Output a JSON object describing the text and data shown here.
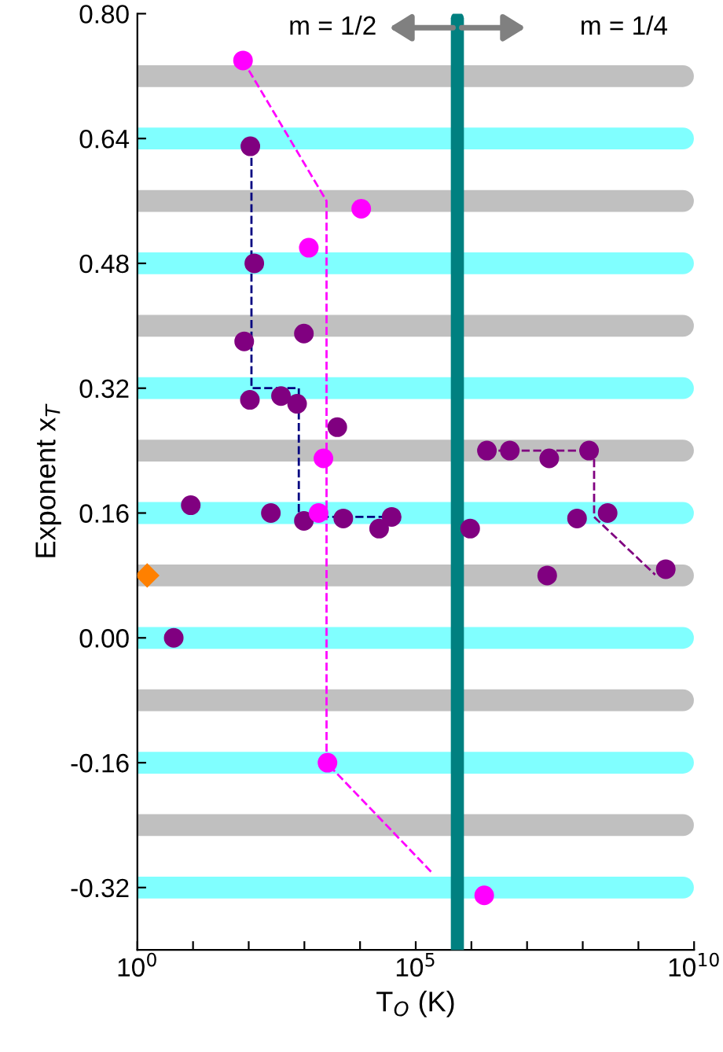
{
  "chart_data": {
    "type": "scatter",
    "xlabel": "T$_{O}$ (K)",
    "ylabel": "Exponent x$_{T}$",
    "log": "x",
    "grid": false,
    "legend": false,
    "xlim": [
      1,
      10000000000
    ],
    "ylim": [
      -0.4,
      0.8
    ],
    "xticks": [
      {
        "value": 1,
        "label": "10$^{0}$"
      },
      {
        "value": 10,
        "label": null
      },
      {
        "value": 100,
        "label": null
      },
      {
        "value": 1000,
        "label": null
      },
      {
        "value": 10000,
        "label": null
      },
      {
        "value": 100000,
        "label": "10$^{5}$"
      },
      {
        "value": 1000000,
        "label": null
      },
      {
        "value": 10000000,
        "label": null
      },
      {
        "value": 100000000,
        "label": null
      },
      {
        "value": 1000000000,
        "label": null
      },
      {
        "value": 10000000000,
        "label": "10$^{10}$"
      }
    ],
    "yticks": [
      -0.32,
      -0.16,
      {
        "value": 0,
        "label": "0.00"
      },
      0.16,
      0.32,
      0.48,
      0.64,
      {
        "value": 0.8,
        "label": "0.80"
      }
    ],
    "ref_lines": [
      {
        "axis": "y",
        "value": 0.72,
        "color": "#c0c0c0"
      },
      {
        "axis": "y",
        "value": 0.64,
        "color": "#80ffff"
      },
      {
        "axis": "y",
        "value": 0.56,
        "color": "#c0c0c0"
      },
      {
        "axis": "y",
        "value": 0.48,
        "color": "#80ffff"
      },
      {
        "axis": "y",
        "value": 0.4,
        "color": "#c0c0c0"
      },
      {
        "axis": "y",
        "value": 0.32,
        "color": "#80ffff"
      },
      {
        "axis": "y",
        "value": 0.24,
        "color": "#c0c0c0"
      },
      {
        "axis": "y",
        "value": 0.16,
        "color": "#80ffff"
      },
      {
        "axis": "y",
        "value": 0.08,
        "color": "#c0c0c0"
      },
      {
        "axis": "y",
        "value": 0.0,
        "color": "#80ffff"
      },
      {
        "axis": "y",
        "value": -0.08,
        "color": "#c0c0c0"
      },
      {
        "axis": "y",
        "value": -0.16,
        "color": "#80ffff"
      },
      {
        "axis": "y",
        "value": -0.24,
        "color": "#c0c0c0"
      },
      {
        "axis": "y",
        "value": -0.32,
        "color": "#80ffff"
      },
      {
        "axis": "x",
        "value": 560000,
        "color": "#008080"
      }
    ],
    "annotations": [
      "m = 1/2",
      "m = 1/4"
    ],
    "series": [
      {
        "type": "line",
        "color": "#000080",
        "marker": "none",
        "line_style": "dashed",
        "x": [
          112,
          112,
          794,
          794,
          45000
        ],
        "values": [
          0.63,
          0.32,
          0.32,
          0.155,
          0.155
        ]
      },
      {
        "type": "line",
        "color": "#ff00ff",
        "marker": "none",
        "line_style": "dashed",
        "x": [
          79,
          2500,
          2500,
          190000
        ],
        "values": [
          0.74,
          0.56,
          -0.16,
          -0.3
        ]
      },
      {
        "type": "line",
        "color": "#800080",
        "marker": "none",
        "line_style": "dashed",
        "x": [
          1900000,
          160000000,
          160000000,
          2000000000
        ],
        "values": [
          0.24,
          0.24,
          0.155,
          0.081
        ]
      },
      {
        "color": "#800080",
        "marker": "circle",
        "x": [
          107,
          126,
          83,
          980,
          105,
          380,
          740,
          3900,
          9.1,
          250,
          980,
          5000,
          22000,
          37000,
          4.5,
          1900000,
          4900000,
          25000000,
          130000000,
          950000,
          79000000,
          280000000,
          23000000,
          3100000000
        ],
        "values": [
          0.63,
          0.48,
          0.38,
          0.39,
          0.305,
          0.31,
          0.3,
          0.27,
          0.17,
          0.16,
          0.15,
          0.153,
          0.14,
          0.155,
          0.0,
          0.24,
          0.24,
          0.23,
          0.24,
          0.14,
          0.153,
          0.16,
          0.08,
          0.088
        ]
      },
      {
        "color": "#ff00ff",
        "marker": "circle",
        "x": [
          79,
          10500,
          1200,
          2200,
          1800,
          2600,
          1700000
        ],
        "values": [
          0.74,
          0.55,
          0.5,
          0.23,
          0.16,
          -0.16,
          -0.33
        ]
      },
      {
        "color": "#ff8000",
        "marker": "diamond",
        "x": [
          1.5
        ],
        "values": [
          0.08
        ]
      }
    ]
  }
}
